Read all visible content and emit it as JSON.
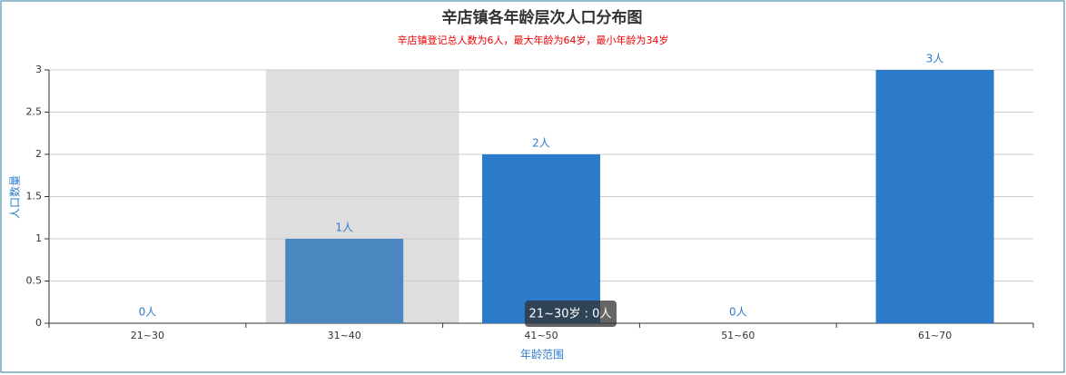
{
  "chart_data": {
    "type": "bar",
    "title": "辛店镇各年龄层次人口分布图",
    "subtitle": "辛店镇登记总人数为6人，最大年龄为64岁，最小年龄为34岁",
    "x_label": "年龄范围",
    "y_label": "人口数量",
    "categories": [
      "21~30",
      "31~40",
      "41~50",
      "51~60",
      "61~70"
    ],
    "values": [
      0,
      1,
      2,
      0,
      3
    ],
    "value_labels": [
      "0人",
      "1人",
      "2人",
      "0人",
      "3人"
    ],
    "color": "#2c7bca",
    "highlight_color": "#4a86bf",
    "highlight": 1,
    "ylim": [
      0,
      3
    ],
    "yticks": [
      0,
      0.5,
      1,
      1.5,
      2,
      2.5,
      3
    ],
    "grid": true,
    "tooltip": "21~30岁 : 0人"
  }
}
